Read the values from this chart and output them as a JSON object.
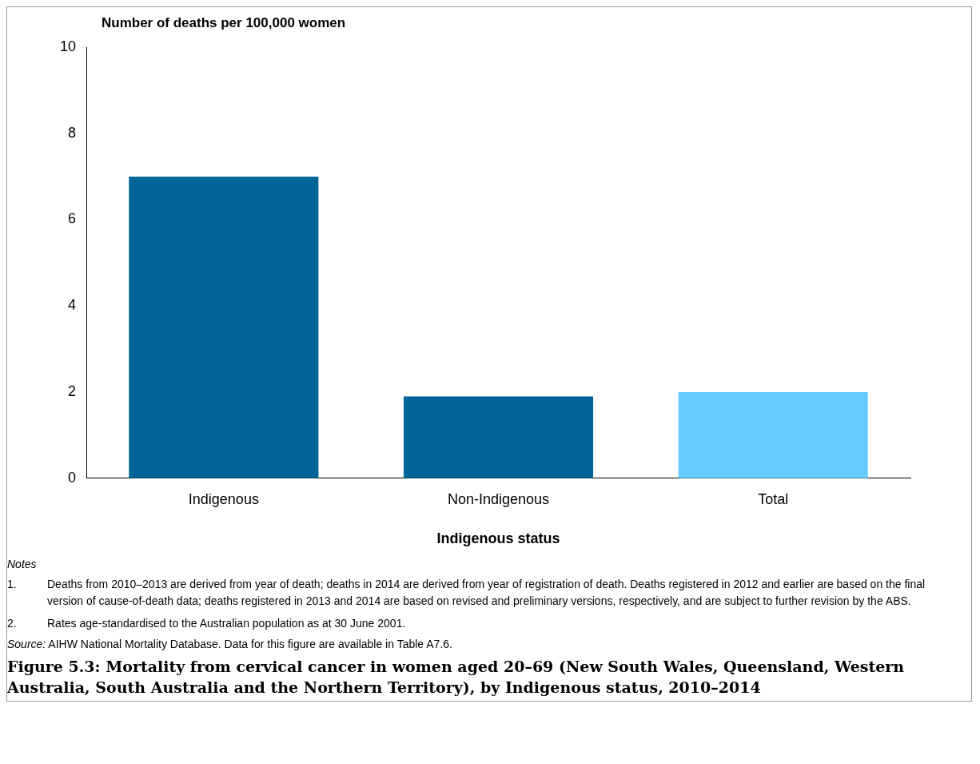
{
  "chart_data": {
    "type": "bar",
    "title": "Figure 5.3: Mortality from cervical cancer in women aged 20–69 (New South Wales, Queensland, Western Australia, South Australia and the Northern Territory), by Indigenous status, 2010–2014",
    "ylabel": "Number of deaths per 100,000 women",
    "xlabel": "Indigenous status",
    "categories": [
      "Indigenous",
      "Non-Indigenous",
      "Total"
    ],
    "values": [
      7.0,
      1.9,
      2.0
    ],
    "colors": [
      "#006699",
      "#006699",
      "#66ccff"
    ],
    "ylim": [
      0,
      10
    ],
    "yticks": [
      0,
      2,
      4,
      6,
      8,
      10
    ],
    "grid": false,
    "annotations": [
      "Notes",
      "1. Deaths from 2010–2013 are derived from year of death; deaths in 2014 are derived from year of registration of death. Deaths registered in 2012 and earlier are based on the final version of cause-of-death data; deaths registered in 2013 and 2014 are based on revised and preliminary versions, respectively, and are subject to further revision by the ABS.",
      "2. Rates age-standardised to the Australian population as at 30 June 2001.",
      "Source: AIHW National Mortality Database. Data for this figure are available in Table A7.6."
    ]
  }
}
